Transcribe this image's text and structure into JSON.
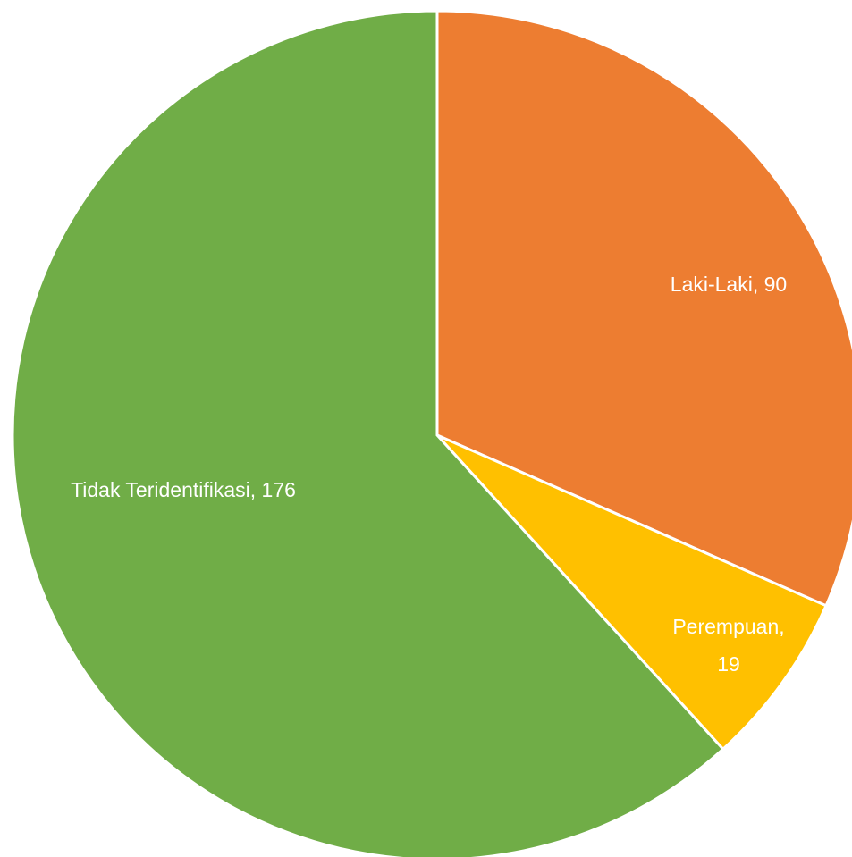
{
  "chart_data": {
    "type": "pie",
    "values": [
      90,
      19,
      176
    ],
    "value_labels": [
      "Laki-Laki, 90",
      "Perempuan, 19",
      "Tidak Teridentifikasi, 176"
    ],
    "colors": [
      "#ed7d31",
      "#ffc000",
      "#70ad47"
    ],
    "start_angle": 0,
    "direction": "clockwise"
  }
}
